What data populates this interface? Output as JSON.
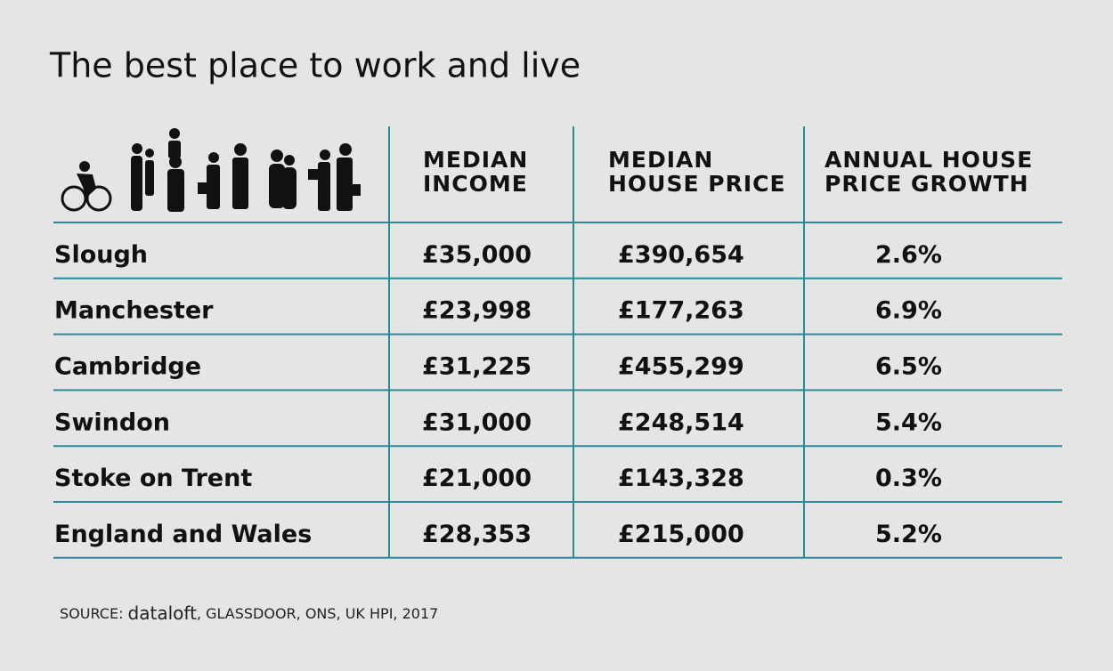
{
  "title": "The best place to work and live",
  "table": {
    "headers": [
      [
        "MEDIAN",
        "INCOME"
      ],
      [
        "MEDIAN",
        "HOUSE PRICE"
      ],
      [
        "ANNUAL HOUSE",
        "PRICE GROWTH"
      ]
    ],
    "rows": [
      [
        "Slough",
        "£35,000",
        "£390,654",
        "2.6%"
      ],
      [
        "Manchester",
        "£23,998",
        "£177,263",
        "6.9%"
      ],
      [
        "Cambridge",
        "£31,225",
        "£455,299",
        "6.5%"
      ],
      [
        "Swindon",
        "£31,000",
        "£248,514",
        "5.4%"
      ],
      [
        "Stoke on Trent",
        "£21,000",
        "£143,328",
        "0.3%"
      ],
      [
        "England and Wales",
        "£28,353",
        "£215,000",
        "5.2%"
      ]
    ]
  },
  "source": {
    "label": "SOURCE:",
    "brand": "dataloft",
    "rest": ", GLASSDOOR, ONS, UK HPI, 2017"
  }
}
